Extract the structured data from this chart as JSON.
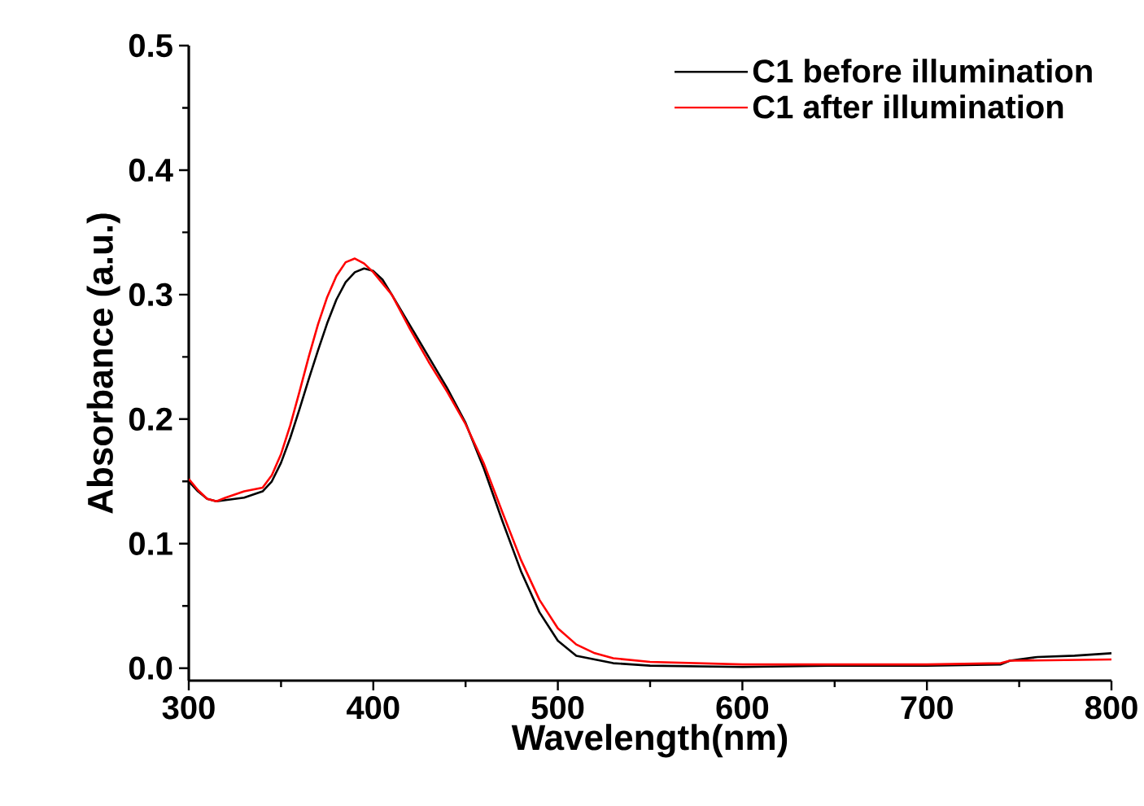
{
  "chart_data": {
    "type": "line",
    "xlabel": "Wavelength(nm)",
    "ylabel": "Absorbance (a.u.)",
    "xlim": [
      300,
      800
    ],
    "ylim": [
      -0.01,
      0.5
    ],
    "xticks": [
      300,
      400,
      500,
      600,
      700,
      800
    ],
    "yticks": [
      {
        "value": 0,
        "label": "0.0"
      },
      0.1,
      0.2,
      0.3,
      0.4,
      0.5
    ],
    "grid": false,
    "legend": "top right",
    "marker": "none",
    "line_style": "solid",
    "series": [
      {
        "name": "C1 before illumination",
        "color": "#000000",
        "x": [
          300,
          305,
          310,
          315,
          320,
          330,
          340,
          345,
          350,
          355,
          360,
          365,
          370,
          375,
          380,
          385,
          390,
          395,
          400,
          405,
          410,
          420,
          430,
          440,
          450,
          460,
          470,
          480,
          490,
          500,
          510,
          520,
          530,
          550,
          600,
          650,
          700,
          740,
          745,
          760,
          780,
          800
        ],
        "values": [
          0.15,
          0.142,
          0.136,
          0.134,
          0.135,
          0.137,
          0.142,
          0.15,
          0.165,
          0.185,
          0.208,
          0.232,
          0.255,
          0.277,
          0.296,
          0.31,
          0.318,
          0.321,
          0.319,
          0.312,
          0.3,
          0.275,
          0.25,
          0.225,
          0.197,
          0.16,
          0.118,
          0.078,
          0.045,
          0.022,
          0.01,
          0.007,
          0.004,
          0.002,
          0.001,
          0.002,
          0.002,
          0.003,
          0.006,
          0.009,
          0.01,
          0.012
        ]
      },
      {
        "name": "C1 after illumination",
        "color": "#ff0000",
        "x": [
          300,
          305,
          310,
          315,
          320,
          330,
          340,
          345,
          350,
          355,
          360,
          365,
          370,
          375,
          380,
          385,
          390,
          395,
          400,
          410,
          420,
          430,
          440,
          450,
          460,
          470,
          480,
          490,
          500,
          510,
          520,
          530,
          550,
          600,
          650,
          700,
          740,
          745,
          800
        ],
        "values": [
          0.152,
          0.143,
          0.136,
          0.134,
          0.137,
          0.142,
          0.145,
          0.155,
          0.172,
          0.195,
          0.222,
          0.25,
          0.276,
          0.298,
          0.315,
          0.326,
          0.329,
          0.325,
          0.318,
          0.3,
          0.272,
          0.246,
          0.222,
          0.196,
          0.164,
          0.125,
          0.087,
          0.055,
          0.032,
          0.019,
          0.012,
          0.008,
          0.005,
          0.003,
          0.003,
          0.003,
          0.004,
          0.006,
          0.007
        ]
      }
    ]
  }
}
